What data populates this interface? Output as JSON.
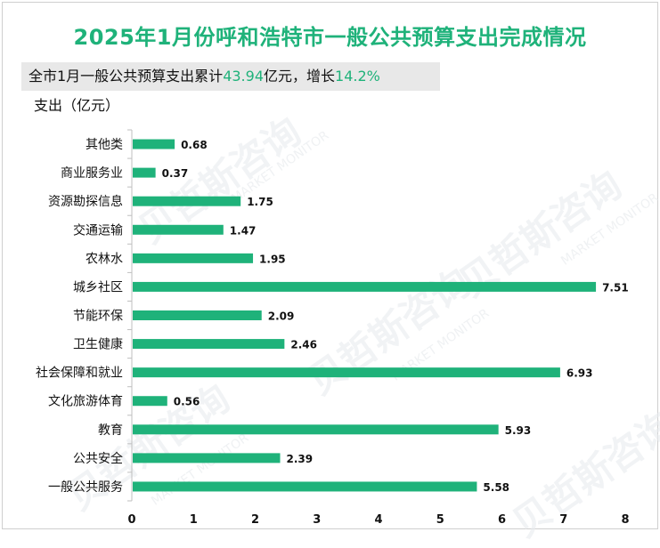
{
  "title": "2025年1月份呼和浩特市一般公共预算支出完成情况",
  "subtitle": {
    "prefix": "全市1月一般公共预算支出累计",
    "amount": "43.94",
    "middle": "亿元，增长",
    "growth": "14.2%"
  },
  "watermark": {
    "cn": "贝哲斯咨询",
    "en": "MARKET MONITOR"
  },
  "chart_data": {
    "type": "bar",
    "orientation": "horizontal",
    "ylabel": "支出（亿元）",
    "categories": [
      "其他类",
      "商业服务业",
      "资源勘探信息",
      "交通运输",
      "农林水",
      "城乡社区",
      "节能环保",
      "卫生健康",
      "社会保障和就业",
      "文化旅游体育",
      "教育",
      "公共安全",
      "一般公共服务"
    ],
    "values": [
      0.68,
      0.37,
      1.75,
      1.47,
      1.95,
      7.51,
      2.09,
      2.46,
      6.93,
      0.56,
      5.93,
      2.39,
      5.58
    ],
    "xlim": [
      0,
      8
    ],
    "xticks": [
      0,
      1,
      2,
      3,
      4,
      5,
      6,
      7,
      8
    ],
    "bar_color": "#1fb27a",
    "grid": false
  }
}
